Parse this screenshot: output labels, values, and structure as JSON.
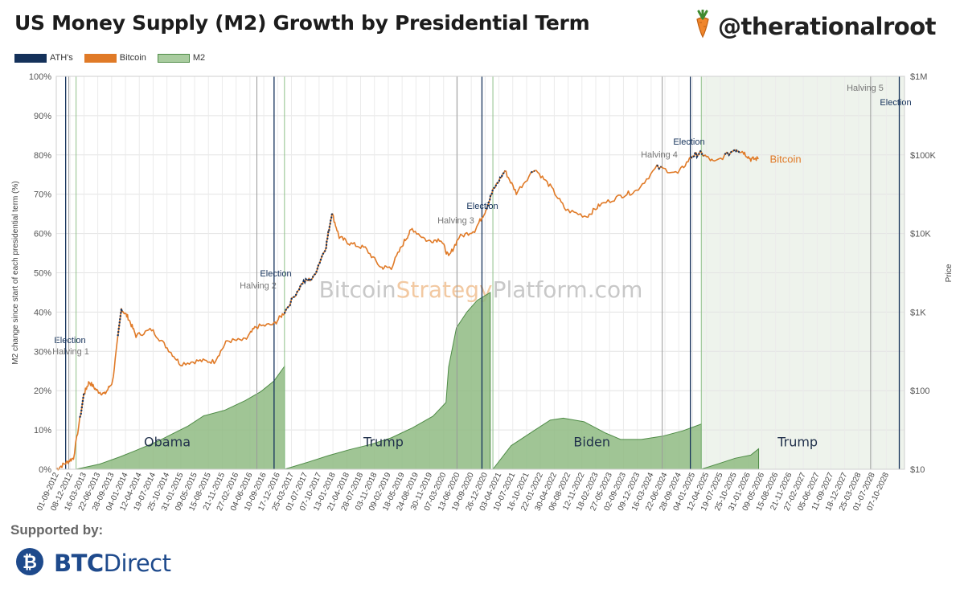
{
  "header": {
    "title": "US Money Supply (M2) Growth by Presidential Term",
    "handle": "@therationalroot"
  },
  "footer": {
    "supported_by": "Supported by:",
    "sponsor_bold": "BTC",
    "sponsor_rest": "Direct"
  },
  "colors": {
    "ath": "#14315a",
    "bitcoin": "#e07a27",
    "m2_fill": "#8fbb83",
    "m2_line": "#4f8c47",
    "election": "#14315a",
    "halving": "#9a9a9a",
    "future_shade": "#eef3ec"
  },
  "chart_data": {
    "type": "line+area",
    "title": "US Money Supply (M2) Growth by Presidential Term",
    "watermark": {
      "a": "Bitcoin",
      "b": "Strategy",
      "c": "Platform.com"
    },
    "ylabel_left": "M2 change since start of each presidential term (%)",
    "ylabel_right": "Price",
    "y_left_ticks": [
      "0%",
      "10%",
      "20%",
      "30%",
      "40%",
      "50%",
      "60%",
      "70%",
      "80%",
      "90%",
      "100%"
    ],
    "y_left_range": [
      0,
      100
    ],
    "y_right_ticks": [
      "$10",
      "$100",
      "$1K",
      "$10K",
      "$100K",
      "$1M"
    ],
    "y_right_range_log10": [
      1,
      6
    ],
    "x_range_year": [
      2012.67,
      2028.95
    ],
    "x_ticks": [
      "01-09-2012",
      "08-12-2012",
      "16-03-2013",
      "22-06-2013",
      "28-09-2013",
      "04-01-2014",
      "12-04-2014",
      "19-07-2014",
      "25-10-2014",
      "31-01-2015",
      "09-05-2015",
      "15-08-2015",
      "21-11-2015",
      "27-02-2016",
      "04-06-2016",
      "10-09-2016",
      "17-12-2016",
      "25-03-2017",
      "01-07-2017",
      "07-10-2017",
      "13-01-2018",
      "21-04-2018",
      "28-07-2018",
      "03-11-2018",
      "09-02-2019",
      "18-05-2019",
      "24-08-2019",
      "30-11-2019",
      "07-03-2020",
      "13-06-2020",
      "19-09-2020",
      "26-12-2020",
      "03-04-2021",
      "10-07-2021",
      "16-10-2021",
      "22-01-2022",
      "30-04-2022",
      "06-08-2022",
      "12-11-2022",
      "18-02-2023",
      "27-05-2023",
      "02-09-2023",
      "09-12-2023",
      "16-03-2024",
      "22-06-2024",
      "28-09-2024",
      "04-01-2025",
      "12-04-2025",
      "19-07-2025",
      "25-10-2025",
      "31-01-2026",
      "09-05-2026",
      "15-08-2026",
      "21-11-2026",
      "27-02-2027",
      "05-06-2027",
      "11-09-2027",
      "18-12-2027",
      "25-03-2028",
      "01-07-2028",
      "07-10-2028"
    ],
    "legend": [
      "ATH's",
      "Bitcoin",
      "M2"
    ],
    "elections": [
      {
        "year": 2012.85,
        "label": "Election"
      },
      {
        "year": 2016.85,
        "label": "Election"
      },
      {
        "year": 2020.84,
        "label": "Election"
      },
      {
        "year": 2024.84,
        "label": "Election"
      },
      {
        "year": 2028.85,
        "label": "Election"
      }
    ],
    "halvings": [
      {
        "year": 2012.91,
        "label": "Halving 1"
      },
      {
        "year": 2016.52,
        "label": "Halving 2"
      },
      {
        "year": 2020.36,
        "label": "Halving 3"
      },
      {
        "year": 2024.3,
        "label": "Halving 4"
      },
      {
        "year": 2028.3,
        "label": "Halving 5"
      }
    ],
    "inaugurations": [
      2013.05,
      2017.05,
      2021.05,
      2025.05
    ],
    "future_start": 2025.05,
    "terms": [
      {
        "president": "Obama",
        "label_year": 2014.8,
        "label_pct": 10,
        "m2": [
          [
            2013.05,
            0
          ],
          [
            2013.5,
            1.3
          ],
          [
            2013.9,
            3.2
          ],
          [
            2014.2,
            4.8
          ],
          [
            2014.6,
            7
          ],
          [
            2014.9,
            9
          ],
          [
            2015.2,
            11
          ],
          [
            2015.5,
            13.6
          ],
          [
            2015.9,
            15
          ],
          [
            2016.3,
            17.5
          ],
          [
            2016.6,
            19.8
          ],
          [
            2016.85,
            22.5
          ],
          [
            2017.05,
            26.2
          ]
        ]
      },
      {
        "president": "Trump",
        "label_year": 2018.95,
        "label_pct": 10,
        "m2": [
          [
            2017.05,
            0
          ],
          [
            2017.5,
            1.8
          ],
          [
            2017.9,
            3.5
          ],
          [
            2018.3,
            5
          ],
          [
            2018.7,
            6.3
          ],
          [
            2019.1,
            8
          ],
          [
            2019.5,
            10.5
          ],
          [
            2019.9,
            13.5
          ],
          [
            2020.15,
            17
          ],
          [
            2020.2,
            26
          ],
          [
            2020.35,
            36
          ],
          [
            2020.55,
            40
          ],
          [
            2020.75,
            43
          ],
          [
            2021.0,
            45
          ]
        ]
      },
      {
        "president": "Biden",
        "label_year": 2022.95,
        "label_pct": 10,
        "m2": [
          [
            2021.05,
            0
          ],
          [
            2021.4,
            6
          ],
          [
            2021.8,
            9.5
          ],
          [
            2022.15,
            12.5
          ],
          [
            2022.4,
            13
          ],
          [
            2022.8,
            12.1
          ],
          [
            2023.2,
            9.3
          ],
          [
            2023.5,
            7.6
          ],
          [
            2023.9,
            7.6
          ],
          [
            2024.3,
            8.4
          ],
          [
            2024.7,
            9.8
          ],
          [
            2025.05,
            11.5
          ]
        ]
      },
      {
        "president": "Trump",
        "label_year": 2026.9,
        "label_pct": 10,
        "m2": [
          [
            2025.05,
            0
          ],
          [
            2025.4,
            1.5
          ],
          [
            2025.7,
            2.8
          ],
          [
            2026.0,
            3.6
          ],
          [
            2026.15,
            5.2
          ]
        ]
      }
    ],
    "bitcoin": {
      "label": "Bitcoin",
      "price": [
        [
          2012.67,
          10
        ],
        [
          2012.85,
          12
        ],
        [
          2013.0,
          14
        ],
        [
          2013.2,
          90
        ],
        [
          2013.3,
          130
        ],
        [
          2013.45,
          100
        ],
        [
          2013.6,
          90
        ],
        [
          2013.75,
          130
        ],
        [
          2013.92,
          1100
        ],
        [
          2014.05,
          850
        ],
        [
          2014.2,
          500
        ],
        [
          2014.5,
          600
        ],
        [
          2014.8,
          350
        ],
        [
          2015.05,
          220
        ],
        [
          2015.4,
          240
        ],
        [
          2015.7,
          235
        ],
        [
          2015.95,
          430
        ],
        [
          2016.3,
          440
        ],
        [
          2016.5,
          650
        ],
        [
          2016.85,
          700
        ],
        [
          2017.05,
          1000
        ],
        [
          2017.4,
          2400
        ],
        [
          2017.6,
          2700
        ],
        [
          2017.85,
          7000
        ],
        [
          2017.96,
          18500
        ],
        [
          2018.1,
          9000
        ],
        [
          2018.3,
          7500
        ],
        [
          2018.6,
          6500
        ],
        [
          2018.9,
          3700
        ],
        [
          2019.1,
          3700
        ],
        [
          2019.35,
          8000
        ],
        [
          2019.5,
          11500
        ],
        [
          2019.8,
          8000
        ],
        [
          2020.05,
          8500
        ],
        [
          2020.2,
          5000
        ],
        [
          2020.4,
          9000
        ],
        [
          2020.7,
          11000
        ],
        [
          2020.9,
          19000
        ],
        [
          2021.05,
          35000
        ],
        [
          2021.28,
          63000
        ],
        [
          2021.5,
          33000
        ],
        [
          2021.85,
          67000
        ],
        [
          2022.15,
          40000
        ],
        [
          2022.45,
          20000
        ],
        [
          2022.85,
          16500
        ],
        [
          2023.1,
          23000
        ],
        [
          2023.5,
          30000
        ],
        [
          2023.8,
          35000
        ],
        [
          2024.2,
          70000
        ],
        [
          2024.6,
          58000
        ],
        [
          2024.88,
          98000
        ],
        [
          2025.05,
          105000
        ],
        [
          2025.3,
          80000
        ],
        [
          2025.7,
          118000
        ],
        [
          2025.85,
          110000
        ],
        [
          2026.0,
          88000
        ],
        [
          2026.15,
          90000
        ]
      ]
    },
    "ath_windows": [
      [
        2013.12,
        2013.22
      ],
      [
        2013.85,
        2013.94
      ],
      [
        2017.05,
        2017.98
      ],
      [
        2020.92,
        2021.28
      ],
      [
        2021.76,
        2021.85
      ],
      [
        2024.2,
        2024.28
      ],
      [
        2024.85,
        2025.1
      ],
      [
        2025.5,
        2025.8
      ]
    ]
  }
}
